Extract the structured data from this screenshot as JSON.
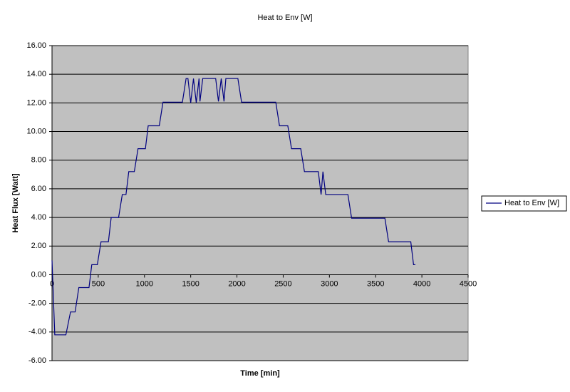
{
  "chart_data": {
    "type": "line",
    "title": "Heat to Env [W]",
    "x_label": "Time [min]",
    "y_label": "Heat Flux [Watt]",
    "x": [
      0,
      30,
      150,
      200,
      250,
      290,
      400,
      430,
      490,
      530,
      610,
      640,
      720,
      760,
      800,
      830,
      890,
      930,
      1010,
      1040,
      1160,
      1200,
      1410,
      1450,
      1470,
      1500,
      1530,
      1560,
      1590,
      1600,
      1630,
      1770,
      1800,
      1830,
      1860,
      1880,
      2010,
      2050,
      2420,
      2460,
      2550,
      2590,
      2690,
      2730,
      2880,
      2910,
      2930,
      2960,
      3200,
      3240,
      3600,
      3640,
      3880,
      3910,
      3930
    ],
    "series": [
      {
        "name": "Heat to Env [W]",
        "color": "#000080",
        "values": [
          1.0,
          -4.2,
          -4.2,
          -2.6,
          -2.6,
          -0.9,
          -0.9,
          0.7,
          0.7,
          2.3,
          2.3,
          4.0,
          4.0,
          5.6,
          5.6,
          7.2,
          7.2,
          8.8,
          8.8,
          10.4,
          10.4,
          12.05,
          12.05,
          13.7,
          13.7,
          12.0,
          13.7,
          12.0,
          13.7,
          12.1,
          13.7,
          13.7,
          12.1,
          13.7,
          12.1,
          13.7,
          13.7,
          12.05,
          12.05,
          10.4,
          10.4,
          8.8,
          8.8,
          7.2,
          7.2,
          5.6,
          7.2,
          5.6,
          5.6,
          3.95,
          3.95,
          2.3,
          2.3,
          0.7,
          0.7
        ]
      }
    ],
    "xlim": [
      0,
      4500
    ],
    "xticks": [
      0,
      500,
      1000,
      1500,
      2000,
      2500,
      3000,
      3500,
      4000,
      4500
    ],
    "ylim": [
      -6,
      16
    ],
    "yticks": [
      {
        "value": -6,
        "label": "-6.00"
      },
      {
        "value": -4,
        "label": "-4.00"
      },
      {
        "value": -2,
        "label": "-2.00"
      },
      {
        "value": 0,
        "label": "0.00"
      },
      {
        "value": 2,
        "label": "2.00"
      },
      {
        "value": 4,
        "label": "4.00"
      },
      {
        "value": 6,
        "label": "6.00"
      },
      {
        "value": 8,
        "label": "8.00"
      },
      {
        "value": 10,
        "label": "10.00"
      },
      {
        "value": 12,
        "label": "12.00"
      },
      {
        "value": 14,
        "label": "14.00"
      },
      {
        "value": 16,
        "label": "16.00"
      }
    ],
    "grid": true,
    "legend": "right",
    "plot_background": "#c0c0c0"
  }
}
